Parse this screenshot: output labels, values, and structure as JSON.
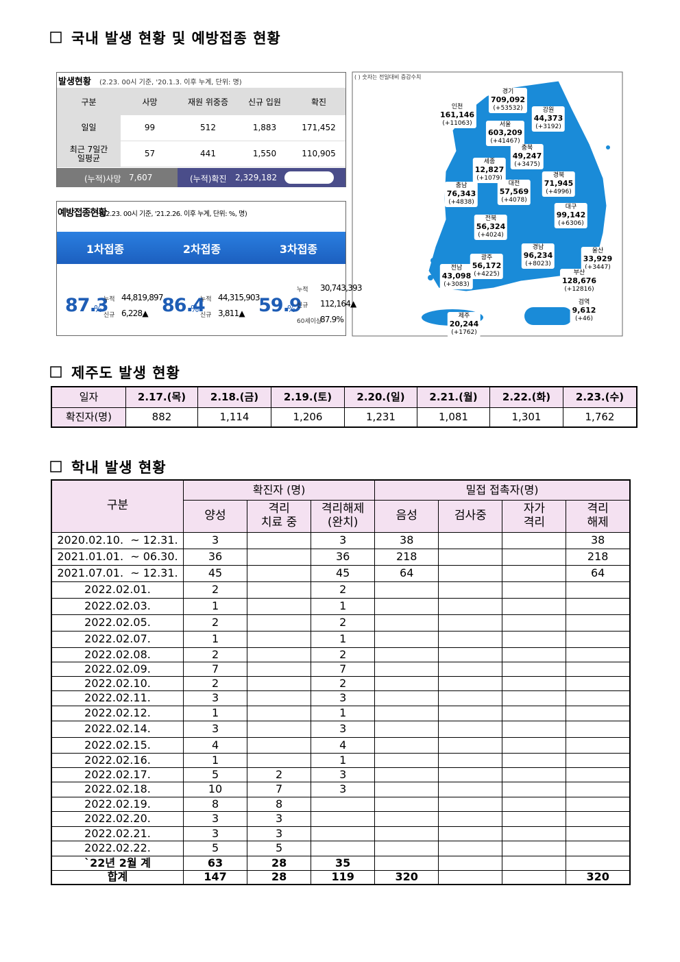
{
  "sections": {
    "domestic": "국내 발생 현황 및 예방접종 현황",
    "jeju": "제주도 발생 현황",
    "school": "학내 발생 현황"
  },
  "outbreak": {
    "title": "발생현황",
    "subtitle": "(2.23. 00시 기준, '20.1.3. 이후 누계, 단위: 명)",
    "columns": [
      "구분",
      "사망",
      "재원 위중증",
      "신규 입원",
      "확진"
    ],
    "rows": [
      [
        "일일",
        "99",
        "512",
        "1,883",
        "171,452"
      ],
      [
        "최근 7일간\n일평균",
        "57",
        "441",
        "1,550",
        "110,905"
      ]
    ],
    "footer": {
      "deaths_label": "(누적)사망",
      "deaths": "7,607",
      "cases_label": "(누적)확진",
      "cases": "2,329,182"
    }
  },
  "vaccination": {
    "title": "예방접종현황",
    "subtitle": "(02.23. 00시 기준, '21.2.26. 이후 누계, 단위: %, 명)",
    "doses": [
      {
        "name": "1차접종",
        "rate": "87.3",
        "unit": "%",
        "items": [
          {
            "label": "누적",
            "value": "44,819,897"
          },
          {
            "label": "신규",
            "value": "6,228▲"
          }
        ]
      },
      {
        "name": "2차접종",
        "rate": "86.4",
        "unit": "%",
        "items": [
          {
            "label": "누적",
            "value": "44,315,903"
          },
          {
            "label": "신규",
            "value": "3,811▲"
          }
        ]
      },
      {
        "name": "3차접종",
        "rate": "59.9",
        "unit": "%",
        "items": [
          {
            "label": "누적",
            "value": "30,743,393"
          },
          {
            "label": "신규",
            "value": "112,164▲"
          },
          {
            "label": "60세이상",
            "value": "87.9%"
          }
        ]
      }
    ]
  },
  "map": {
    "note": "( ) 숫자는 전일대비 증감수치",
    "regions": [
      {
        "name": "경기",
        "total": "709,092",
        "change": "(+53532)"
      },
      {
        "name": "강원",
        "total": "44,373",
        "change": "(+3192)"
      },
      {
        "name": "인천",
        "total": "161,146",
        "change": "(+11063)"
      },
      {
        "name": "서울",
        "total": "603,209",
        "change": "(+41467)"
      },
      {
        "name": "충북",
        "total": "49,247",
        "change": "(+3475)"
      },
      {
        "name": "세종",
        "total": "12,827",
        "change": "(+1079)"
      },
      {
        "name": "경북",
        "total": "71,945",
        "change": "(+4996)"
      },
      {
        "name": "충남",
        "total": "76,343",
        "change": "(+4838)"
      },
      {
        "name": "대전",
        "total": "57,569",
        "change": "(+4078)"
      },
      {
        "name": "대구",
        "total": "99,142",
        "change": "(+6306)"
      },
      {
        "name": "전북",
        "total": "56,324",
        "change": "(+4024)"
      },
      {
        "name": "경남",
        "total": "96,234",
        "change": "(+8023)"
      },
      {
        "name": "울산",
        "total": "33,929",
        "change": "(+3447)"
      },
      {
        "name": "광주",
        "total": "56,172",
        "change": "(+4225)"
      },
      {
        "name": "전남",
        "total": "43,098",
        "change": "(+3083)"
      },
      {
        "name": "부산",
        "total": "128,676",
        "change": "(+12816)"
      },
      {
        "name": "검역",
        "total": "9,612",
        "change": "(+46)"
      },
      {
        "name": "제주",
        "total": "20,244",
        "change": "(+1762)"
      }
    ]
  },
  "jeju": {
    "header": [
      "일자",
      "2.17.(목)",
      "2.18.(금)",
      "2.19.(토)",
      "2.20.(일)",
      "2.21.(월)",
      "2.22.(화)",
      "2.23.(수)"
    ],
    "rows": [
      [
        "확진자(명)",
        "882",
        "1,114",
        "1,206",
        "1,231",
        "1,081",
        "1,301",
        "1,762"
      ]
    ]
  },
  "school": {
    "group_header": {
      "label": "구분",
      "confirmed": "확진자 (명)",
      "contacts": "밀접 접촉자(명)"
    },
    "columns": [
      "양성",
      "격리\n치료 중",
      "격리해제\n(완치)",
      "음성",
      "검사중",
      "자가\n격리",
      "격리\n해제"
    ],
    "rows": [
      [
        "2020.02.10.  ~ 12.31.",
        "3",
        null,
        "3",
        "38",
        null,
        null,
        "38"
      ],
      [
        "2021.01.01.  ~ 06.30.",
        "36",
        null,
        "36",
        "218",
        null,
        null,
        "218"
      ],
      [
        "2021.07.01.  ~ 12.31.",
        "45",
        null,
        "45",
        "64",
        null,
        null,
        "64"
      ],
      [
        "2022.02.01.",
        "2",
        null,
        "2",
        null,
        null,
        null,
        null
      ],
      [
        "2022.02.03.",
        "1",
        null,
        "1",
        null,
        null,
        null,
        null
      ],
      [
        "2022.02.05.",
        "2",
        null,
        "2",
        null,
        null,
        null,
        null
      ],
      [
        "2022.02.07.",
        "1",
        null,
        "1",
        null,
        null,
        null,
        null
      ],
      [
        "2022.02.08.",
        "2",
        null,
        "2",
        null,
        null,
        null,
        null
      ],
      [
        "2022.02.09.",
        "7",
        null,
        "7",
        null,
        null,
        null,
        null
      ],
      [
        "2022.02.10.",
        "2",
        null,
        "2",
        null,
        null,
        null,
        null
      ],
      [
        "2022.02.11.",
        "3",
        null,
        "3",
        null,
        null,
        null,
        null
      ],
      [
        "2022.02.12.",
        "1",
        null,
        "1",
        null,
        null,
        null,
        null
      ],
      [
        "2022.02.14.",
        "3",
        null,
        "3",
        null,
        null,
        null,
        null
      ],
      [
        "2022.02.15.",
        "4",
        null,
        "4",
        null,
        null,
        null,
        null
      ],
      [
        "2022.02.16.",
        "1",
        null,
        "1",
        null,
        null,
        null,
        null
      ],
      [
        "2022.02.17.",
        "5",
        "2",
        "3",
        null,
        null,
        null,
        null
      ],
      [
        "2022.02.18.",
        "10",
        "7",
        "3",
        null,
        null,
        null,
        null
      ],
      [
        "2022.02.19.",
        "8",
        "8",
        null,
        null,
        null,
        null,
        null
      ],
      [
        "2022.02.20.",
        "3",
        "3",
        null,
        null,
        null,
        null,
        null
      ],
      [
        "2022.02.21.",
        "3",
        "3",
        null,
        null,
        null,
        null,
        null
      ],
      [
        "2022.02.22.",
        "5",
        "5",
        null,
        null,
        null,
        null,
        null
      ],
      [
        "`22년 2월 계",
        "63",
        "28",
        "35",
        null,
        null,
        null,
        null
      ],
      [
        "합계",
        "147",
        "28",
        "119",
        "320",
        null,
        null,
        "320"
      ]
    ]
  }
}
